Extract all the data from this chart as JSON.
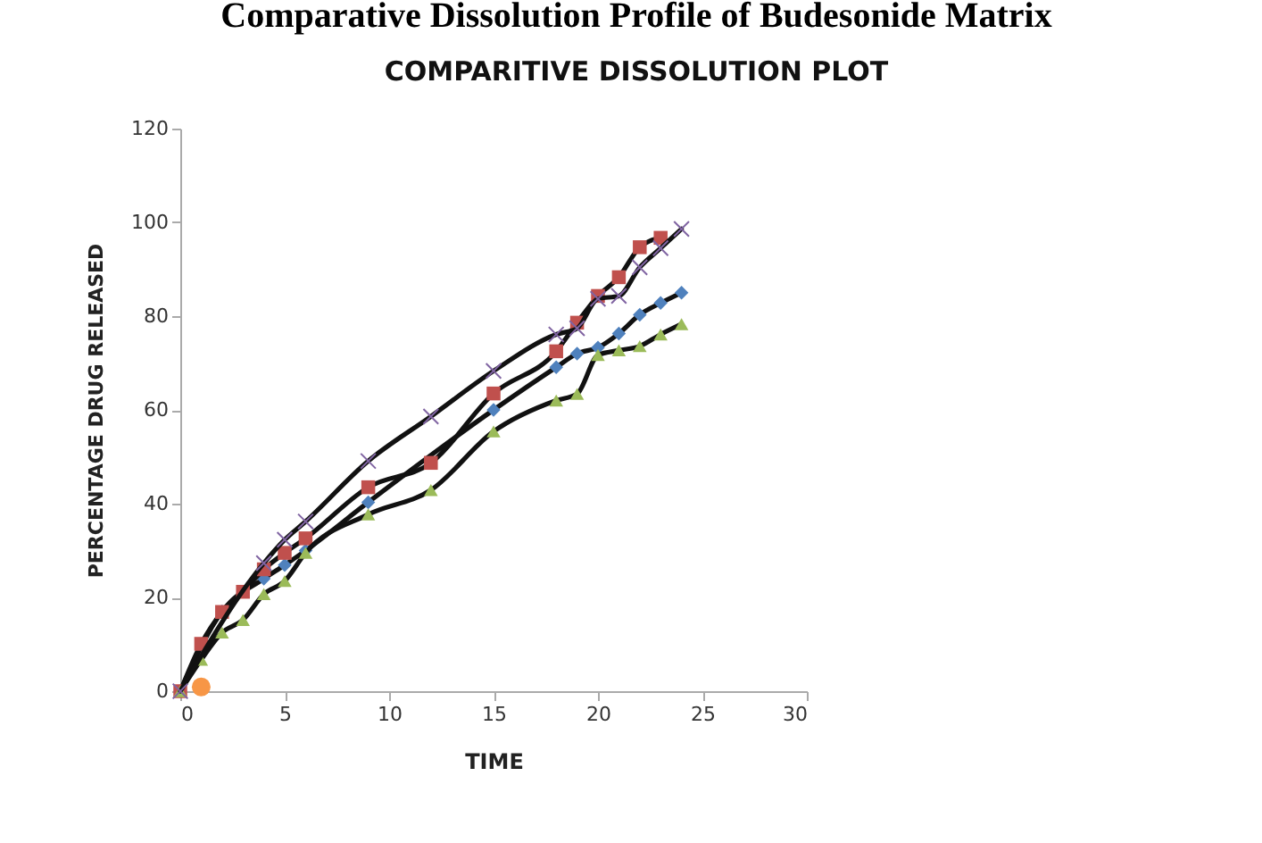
{
  "chart_data": {
    "type": "line",
    "title": "Comparative Dissolution Profile of Budesonide Matrix",
    "subtitle": "COMPARITIVE DISSOLUTION PLOT",
    "xlabel": "TIME",
    "ylabel": "PERCENTAGE DRUG RELEASED",
    "x": [
      0,
      1,
      2,
      3,
      4,
      5,
      6,
      9,
      12,
      15,
      18,
      19,
      20,
      21,
      22,
      23,
      24
    ],
    "series": [
      {
        "color": "#4f81bd",
        "marker": "diamond",
        "values": [
          0,
          null,
          17,
          null,
          24,
          26.9,
          30,
          40.3,
          null,
          60,
          69.1,
          72,
          73.3,
          76.3,
          80.3,
          82.8,
          85
        ]
      },
      {
        "color": "#c0504d",
        "marker": "square",
        "values": [
          0,
          10.1,
          16.9,
          21.2,
          26,
          29.5,
          32.6,
          43.5,
          48.7,
          63.5,
          72.5,
          78.6,
          84.3,
          88.3,
          94.7,
          96.7,
          null
        ]
      },
      {
        "color": "#9bbb59",
        "marker": "triangle",
        "values": [
          0,
          6.7,
          12.5,
          15.2,
          20.7,
          23.5,
          29.5,
          37.7,
          42.9,
          55.4,
          62,
          63.4,
          71.7,
          72.7,
          73.6,
          76.1,
          78.3
        ]
      },
      {
        "color": "#8064a2",
        "marker": "cross",
        "values": [
          0,
          null,
          null,
          null,
          27.3,
          32.3,
          36.2,
          49.1,
          58.6,
          68.3,
          76.1,
          77.4,
          83.7,
          84.3,
          90.4,
          94.5,
          98.6
        ]
      },
      {
        "type": "scatter",
        "color": "#f79646",
        "marker": "circle",
        "x": [
          1
        ],
        "values": [
          0.9
        ]
      }
    ],
    "xlim": [
      0,
      30
    ],
    "xticks": [
      0,
      5,
      10,
      15,
      20,
      25,
      30
    ],
    "ylim": [
      0,
      120
    ],
    "yticks": [
      0,
      20,
      40,
      60,
      80,
      100,
      120
    ],
    "grid": false
  }
}
